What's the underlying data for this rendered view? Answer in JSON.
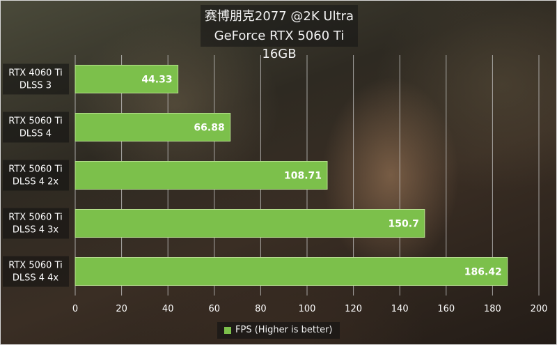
{
  "chart_data": {
    "type": "bar",
    "orientation": "horizontal",
    "title": "赛博朋克2077 @2K Ultra",
    "subtitle": "GeForce RTX 5060 Ti 16GB",
    "categories": [
      [
        "RTX 4060 Ti",
        "DLSS 3"
      ],
      [
        "RTX 5060 Ti",
        "DLSS 4"
      ],
      [
        "RTX 5060 Ti",
        "DLSS 4 2x"
      ],
      [
        "RTX 5060 Ti",
        "DLSS 4 3x"
      ],
      [
        "RTX 5060 Ti",
        "DLSS 4 4x"
      ]
    ],
    "series": [
      {
        "name": "FPS (Higher is better)",
        "values": [
          44.33,
          66.88,
          108.71,
          150.7,
          186.42
        ],
        "labels": [
          "44.33",
          "66.88",
          "108.71",
          "150.7",
          "186.42"
        ]
      }
    ],
    "xlim": [
      0,
      200
    ],
    "xticks": [
      "0",
      "20",
      "40",
      "60",
      "80",
      "100",
      "120",
      "140",
      "160",
      "180",
      "200"
    ],
    "grid": true,
    "legend": "bottom",
    "colors": {
      "bar": "#7cc04b",
      "bar_border": "#b7e08f",
      "grid": "#cfcfcf",
      "text": "#ffffff"
    }
  }
}
